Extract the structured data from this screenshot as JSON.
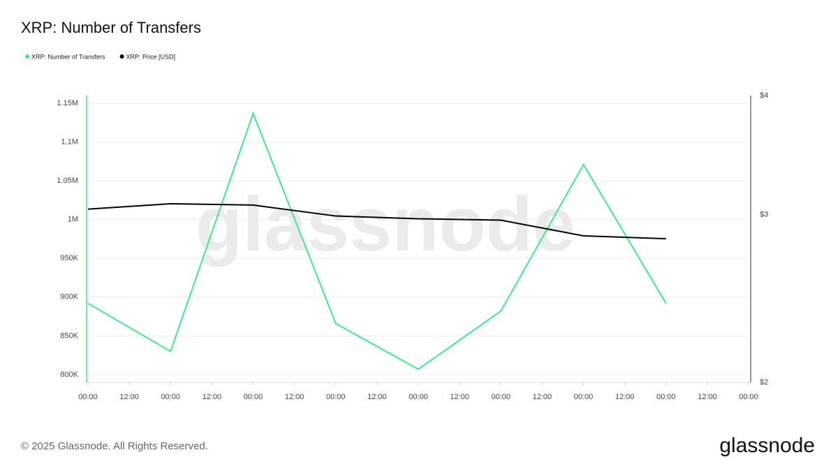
{
  "chart_data": {
    "type": "line",
    "title": "XRP: Number of Transfers",
    "x": [
      0,
      24,
      48,
      72,
      96,
      120,
      144,
      168
    ],
    "xlim": [
      0,
      192
    ],
    "xticks": [
      {
        "value": 0,
        "label": "00:00"
      },
      {
        "value": 12,
        "label": "12:00"
      },
      {
        "value": 24,
        "label": "00:00"
      },
      {
        "value": 36,
        "label": "12:00"
      },
      {
        "value": 48,
        "label": "00:00"
      },
      {
        "value": 60,
        "label": "12:00"
      },
      {
        "value": 72,
        "label": "00:00"
      },
      {
        "value": 84,
        "label": "12:00"
      },
      {
        "value": 96,
        "label": "00:00"
      },
      {
        "value": 108,
        "label": "12:00"
      },
      {
        "value": 120,
        "label": "00:00"
      },
      {
        "value": 132,
        "label": "12:00"
      },
      {
        "value": 144,
        "label": "00:00"
      },
      {
        "value": 156,
        "label": "12:00"
      },
      {
        "value": 168,
        "label": "00:00"
      },
      {
        "value": 180,
        "label": "12:00"
      },
      {
        "value": 192,
        "label": "00:00"
      }
    ],
    "ylim": [
      790000,
      1160000
    ],
    "yticks": [
      {
        "value": 800000,
        "label": "800K"
      },
      {
        "value": 850000,
        "label": "850K"
      },
      {
        "value": 900000,
        "label": "900K"
      },
      {
        "value": 950000,
        "label": "950K"
      },
      {
        "value": 1000000,
        "label": "1M"
      },
      {
        "value": 1050000,
        "label": "1.05M"
      },
      {
        "value": 1100000,
        "label": "1.1M"
      },
      {
        "value": 1150000,
        "label": "1.15M"
      }
    ],
    "y2lim": [
      2,
      4
    ],
    "y2ticks": [
      {
        "value": 2,
        "label": "$2"
      },
      {
        "value": 3,
        "label": "$3"
      },
      {
        "value": 4,
        "label": "$4"
      }
    ],
    "y2_log": true,
    "grid": true,
    "watermark": "glassnode",
    "series": [
      {
        "name": "XRP: Number of Transfers",
        "color": "#3ee88a",
        "axis": "y",
        "values": [
          892000,
          830000,
          1137000,
          866000,
          807000,
          882000,
          1071000,
          892000
        ]
      },
      {
        "name": "XRP: Price [USD]",
        "color": "#000000",
        "axis": "y2",
        "values": [
          3.04,
          3.08,
          3.07,
          2.99,
          2.97,
          2.96,
          2.85,
          2.83
        ]
      }
    ]
  },
  "footer": {
    "copyright": "© 2025 Glassnode. All Rights Reserved.",
    "logo": "glassnode"
  }
}
